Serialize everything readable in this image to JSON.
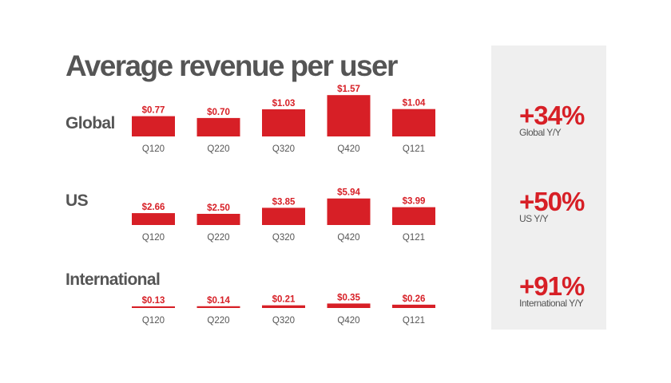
{
  "title": "Average revenue per user",
  "accent_color": "#d71f26",
  "chart_data": [
    {
      "type": "bar",
      "title": "Global",
      "categories": [
        "Q120",
        "Q220",
        "Q320",
        "Q420",
        "Q121"
      ],
      "values": [
        0.77,
        0.7,
        1.03,
        1.57,
        1.04
      ],
      "value_labels": [
        "$0.77",
        "$0.70",
        "$1.03",
        "$1.57",
        "$1.04"
      ],
      "yoy_change": "+34%",
      "yoy_label": "Global Y/Y"
    },
    {
      "type": "bar",
      "title": "US",
      "categories": [
        "Q120",
        "Q220",
        "Q320",
        "Q420",
        "Q121"
      ],
      "values": [
        2.66,
        2.5,
        3.85,
        5.94,
        3.99
      ],
      "value_labels": [
        "$2.66",
        "$2.50",
        "$3.85",
        "$5.94",
        "$3.99"
      ],
      "yoy_change": "+50%",
      "yoy_label": "US Y/Y"
    },
    {
      "type": "bar",
      "title": "International",
      "categories": [
        "Q120",
        "Q220",
        "Q320",
        "Q420",
        "Q121"
      ],
      "values": [
        0.13,
        0.14,
        0.21,
        0.35,
        0.26
      ],
      "value_labels": [
        "$0.13",
        "$0.14",
        "$0.21",
        "$0.35",
        "$0.26"
      ],
      "yoy_change": "+91%",
      "yoy_label": "International Y/Y"
    }
  ]
}
